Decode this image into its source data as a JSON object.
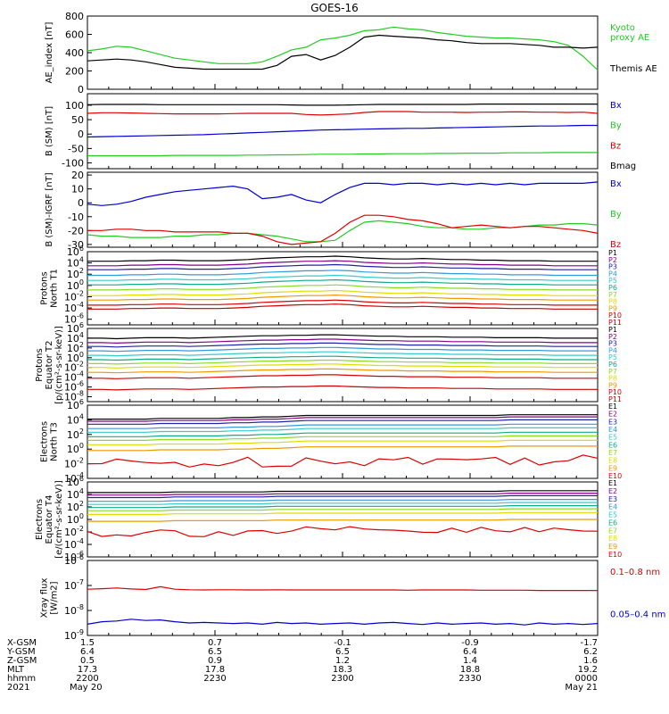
{
  "title": "GOES-16",
  "colors": {
    "black": "#000000",
    "blue": "#0000cc",
    "red": "#dd0000",
    "green": "#22cc22",
    "purple": "#880088",
    "navy": "#2222aa",
    "steel": "#3399dd",
    "cyan": "#33cccc",
    "teal": "#11aa88",
    "lime": "#88dd22",
    "yellow": "#dddd00",
    "orange": "#ee9900",
    "darkred": "#cc0000"
  },
  "time_axis": {
    "start": "2200",
    "end": "0000",
    "ticks": [
      "2200",
      "2230",
      "2300",
      "2330",
      "0000"
    ]
  },
  "footer": {
    "row_labels": [
      "X-GSM",
      "Y-GSM",
      "Z-GSM",
      "MLT",
      "hhmm",
      "2021"
    ],
    "columns": [
      {
        "values": [
          "1.5",
          "6.4",
          "0.5",
          "17.3",
          "2200",
          "May 20"
        ]
      },
      {
        "values": [
          "0.7",
          "6.5",
          "0.9",
          "17.8",
          "2230",
          ""
        ]
      },
      {
        "values": [
          "-0.1",
          "6.5",
          "1.2",
          "18.3",
          "2300",
          ""
        ]
      },
      {
        "values": [
          "-0.9",
          "6.4",
          "1.4",
          "18.8",
          "2330",
          ""
        ]
      },
      {
        "values": [
          "-1.7",
          "6.2",
          "1.6",
          "19.2",
          "0000",
          "May 21"
        ]
      }
    ]
  },
  "chart_data": [
    {
      "type": "line",
      "ylabel": "AE_index [nT]",
      "ylim": [
        0,
        800
      ],
      "yticks": [
        "0",
        "200",
        "400",
        "600",
        "800"
      ],
      "series": [
        {
          "name": "Kyoto proxy AE",
          "legend": [
            "Kyoto",
            "proxy AE"
          ],
          "color": "#22cc22",
          "y": [
            420,
            440,
            470,
            460,
            420,
            380,
            340,
            320,
            300,
            280,
            280,
            280,
            300,
            360,
            430,
            460,
            540,
            560,
            590,
            640,
            650,
            680,
            660,
            650,
            620,
            600,
            580,
            570,
            560,
            560,
            550,
            540,
            520,
            480,
            360,
            210
          ]
        },
        {
          "name": "Themis AE",
          "legend": [
            "Themis AE"
          ],
          "color": "#000000",
          "y": [
            310,
            320,
            330,
            320,
            300,
            270,
            240,
            230,
            220,
            220,
            220,
            220,
            220,
            260,
            360,
            380,
            320,
            370,
            460,
            570,
            590,
            580,
            570,
            560,
            540,
            530,
            510,
            500,
            500,
            500,
            490,
            480,
            460,
            460,
            450,
            460
          ]
        }
      ]
    },
    {
      "type": "line",
      "ylabel": "B (SM) [nT]",
      "ylim": [
        -120,
        140
      ],
      "yticks": [
        "-100",
        "-50",
        "0",
        "50",
        "100"
      ],
      "series": [
        {
          "name": "Bx",
          "legend": [
            "Bx"
          ],
          "color": "#0000cc",
          "y": [
            -10,
            -9,
            -8,
            -7,
            -6,
            -5,
            -4,
            -3,
            -2,
            0,
            2,
            4,
            6,
            8,
            10,
            12,
            14,
            15,
            16,
            17,
            18,
            19,
            20,
            20,
            21,
            22,
            23,
            24,
            25,
            26,
            27,
            28,
            28,
            29,
            30,
            30
          ]
        },
        {
          "name": "By",
          "legend": [
            "By"
          ],
          "color": "#22cc22",
          "y": [
            -75,
            -75,
            -75,
            -75,
            -75,
            -75,
            -74,
            -74,
            -74,
            -74,
            -74,
            -73,
            -73,
            -72,
            -72,
            -71,
            -70,
            -70,
            -70,
            -69,
            -69,
            -68,
            -68,
            -68,
            -67,
            -67,
            -66,
            -66,
            -66,
            -65,
            -65,
            -65,
            -64,
            -64,
            -64,
            -64
          ]
        },
        {
          "name": "Bz",
          "legend": [
            "Bz"
          ],
          "color": "#dd0000",
          "y": [
            72,
            74,
            74,
            73,
            72,
            71,
            70,
            70,
            70,
            70,
            71,
            72,
            72,
            72,
            72,
            68,
            66,
            68,
            70,
            75,
            78,
            78,
            78,
            76,
            76,
            76,
            75,
            76,
            76,
            77,
            77,
            76,
            76,
            75,
            76,
            72
          ]
        },
        {
          "name": "Bmag",
          "legend": [
            "Bmag"
          ],
          "color": "#000000",
          "y": [
            102,
            103,
            103,
            103,
            103,
            102,
            102,
            102,
            102,
            102,
            102,
            102,
            102,
            102,
            101,
            100,
            100,
            100,
            101,
            102,
            103,
            103,
            103,
            103,
            103,
            103,
            103,
            104,
            104,
            104,
            104,
            104,
            104,
            104,
            104,
            104
          ]
        }
      ]
    },
    {
      "type": "line",
      "ylabel": "B (SM)-IGRF [nT]",
      "ylim": [
        -32,
        22
      ],
      "yticks": [
        "-30",
        "-20",
        "-10",
        "0",
        "10",
        "20"
      ],
      "series": [
        {
          "name": "Bx",
          "legend": [
            "Bx"
          ],
          "color": "#0000cc",
          "y": [
            -1,
            -2,
            -1,
            1,
            4,
            6,
            8,
            9,
            10,
            11,
            12,
            10,
            3,
            4,
            6,
            2,
            0,
            6,
            11,
            14,
            14,
            13,
            14,
            14,
            13,
            14,
            13,
            14,
            13,
            14,
            13,
            14,
            14,
            14,
            14,
            15
          ]
        },
        {
          "name": "By",
          "legend": [
            "By"
          ],
          "color": "#22cc22",
          "y": [
            -23,
            -24,
            -24,
            -25,
            -25,
            -25,
            -24,
            -24,
            -23,
            -23,
            -22,
            -22,
            -23,
            -24,
            -26,
            -28,
            -28,
            -27,
            -20,
            -14,
            -13,
            -14,
            -15,
            -17,
            -18,
            -18,
            -19,
            -19,
            -18,
            -18,
            -17,
            -16,
            -16,
            -15,
            -15,
            -16
          ]
        },
        {
          "name": "Bz",
          "legend": [
            "Bz"
          ],
          "color": "#dd0000",
          "y": [
            -20,
            -20,
            -19,
            -19,
            -20,
            -20,
            -21,
            -21,
            -21,
            -21,
            -22,
            -22,
            -24,
            -28,
            -30,
            -29,
            -28,
            -22,
            -14,
            -9,
            -9,
            -10,
            -12,
            -13,
            -15,
            -18,
            -17,
            -16,
            -17,
            -18,
            -17,
            -17,
            -18,
            -19,
            -20,
            -22
          ]
        }
      ]
    },
    {
      "type": "line",
      "ylabel": [
        "Protons",
        "North T1"
      ],
      "log": true,
      "ylim": [
        -7,
        6
      ],
      "yticks": [
        "10^-6",
        "10^-4",
        "10^-2",
        "10^0",
        "10^2",
        "10^4",
        "10^6"
      ],
      "series": [
        {
          "name": "P1",
          "color": "#000000",
          "y": 4.3
        },
        {
          "name": "P2",
          "color": "#880088",
          "y": 3.5
        },
        {
          "name": "P3",
          "color": "#2222aa",
          "y": 2.8
        },
        {
          "name": "P4",
          "color": "#3399dd",
          "y": 1.8
        },
        {
          "name": "P5",
          "color": "#33cccc",
          "y": 0.9
        },
        {
          "name": "P6",
          "color": "#11aa88",
          "y": 0.1
        },
        {
          "name": "P7",
          "color": "#88dd22",
          "y": -0.8
        },
        {
          "name": "P8",
          "color": "#dddd00",
          "y": -1.8
        },
        {
          "name": "P9",
          "color": "#ee9900",
          "y": -2.6
        },
        {
          "name": "P10",
          "color": "#dd0000",
          "y": -3.5
        },
        {
          "name": "P11",
          "color": "#cc0000",
          "y": -4.2
        }
      ],
      "series_shape": [
        0,
        0,
        0,
        0.1,
        0.1,
        0.2,
        0.2,
        0.1,
        0.1,
        0.1,
        0.2,
        0.3,
        0.5,
        0.6,
        0.7,
        0.8,
        0.8,
        0.9,
        0.8,
        0.6,
        0.5,
        0.4,
        0.4,
        0.5,
        0.4,
        0.3,
        0.3,
        0.2,
        0.2,
        0.1,
        0.1,
        0.1,
        0,
        0,
        0,
        0
      ]
    },
    {
      "type": "line",
      "ylabel": [
        "Protons",
        "Equator T2",
        "[p/(cm²-s-sr-keV)]"
      ],
      "log": true,
      "ylim": [
        -9,
        6
      ],
      "yticks": [
        "10^-8",
        "10^-6",
        "10^-4",
        "10^-2",
        "10^0",
        "10^2",
        "10^4",
        "10^6"
      ],
      "series": [
        {
          "name": "P1",
          "color": "#000000",
          "y": 4.0
        },
        {
          "name": "P2",
          "color": "#880088",
          "y": 3.1
        },
        {
          "name": "P3",
          "color": "#2222aa",
          "y": 2.3
        },
        {
          "name": "P4",
          "color": "#3399dd",
          "y": 1.4
        },
        {
          "name": "P5",
          "color": "#33cccc",
          "y": 0.5
        },
        {
          "name": "P6",
          "color": "#11aa88",
          "y": -0.4
        },
        {
          "name": "P7",
          "color": "#88dd22",
          "y": -1.2
        },
        {
          "name": "P8",
          "color": "#dddd00",
          "y": -2.0
        },
        {
          "name": "P9",
          "color": "#ee9900",
          "y": -3.0
        },
        {
          "name": "P10",
          "color": "#dd0000",
          "y": -4.2
        },
        {
          "name": "P11",
          "color": "#cc0000",
          "y": -6.5
        }
      ],
      "series_shape": [
        0,
        0,
        -0.1,
        0,
        0.1,
        0.1,
        0.1,
        0,
        0.1,
        0.2,
        0.3,
        0.4,
        0.5,
        0.5,
        0.6,
        0.6,
        0.7,
        0.7,
        0.6,
        0.5,
        0.4,
        0.4,
        0.3,
        0.3,
        0.3,
        0.2,
        0.2,
        0.2,
        0.1,
        0.1,
        0.1,
        0.1,
        0,
        0,
        0,
        0
      ]
    },
    {
      "type": "line",
      "ylabel": [
        "Electrons",
        "North T3"
      ],
      "log": true,
      "ylim": [
        -4,
        6
      ],
      "yticks": [
        "10^-4",
        "10^-2",
        "10^0",
        "10^2",
        "10^4",
        "10^6"
      ],
      "series": [
        {
          "name": "E1",
          "color": "#000000",
          "y": 4.1
        },
        {
          "name": "E2",
          "color": "#880088",
          "y": 3.8
        },
        {
          "name": "E3",
          "color": "#2222aa",
          "y": 3.4
        },
        {
          "name": "E4",
          "color": "#3399dd",
          "y": 2.8
        },
        {
          "name": "E5",
          "color": "#33cccc",
          "y": 2.3
        },
        {
          "name": "E6",
          "color": "#11aa88",
          "y": 1.7
        },
        {
          "name": "E7",
          "color": "#88dd22",
          "y": 1.2
        },
        {
          "name": "E8",
          "color": "#dddd00",
          "y": 0.6
        },
        {
          "name": "E9",
          "color": "#ee9900",
          "y": -0.2
        },
        {
          "name": "E10",
          "color": "#dd0000",
          "y": -2.0,
          "noisy": true
        }
      ],
      "series_shape": [
        0,
        0,
        0,
        0,
        0,
        0.1,
        0.1,
        0.1,
        0.1,
        0.1,
        0.2,
        0.2,
        0.3,
        0.3,
        0.4,
        0.5,
        0.5,
        0.5,
        0.5,
        0.5,
        0.5,
        0.5,
        0.5,
        0.5,
        0.5,
        0.5,
        0.5,
        0.5,
        0.5,
        0.6,
        0.6,
        0.6,
        0.6,
        0.6,
        0.6,
        0.6
      ]
    },
    {
      "type": "line",
      "ylabel": [
        "Electrons",
        "Equator T4",
        "[e/(cm²-s-sr-keV)]"
      ],
      "log": true,
      "ylim": [
        -6,
        6
      ],
      "yticks": [
        "10^-6",
        "10^-4",
        "10^-2",
        "10^0",
        "10^2",
        "10^4",
        "10^6"
      ],
      "series": [
        {
          "name": "E1",
          "color": "#000000",
          "y": 4.3
        },
        {
          "name": "E2",
          "color": "#880088",
          "y": 3.9
        },
        {
          "name": "E3",
          "color": "#2222aa",
          "y": 3.5
        },
        {
          "name": "E4",
          "color": "#3399dd",
          "y": 2.9
        },
        {
          "name": "E5",
          "color": "#33cccc",
          "y": 2.4
        },
        {
          "name": "E6",
          "color": "#11aa88",
          "y": 1.9
        },
        {
          "name": "E7",
          "color": "#88dd22",
          "y": 1.4
        },
        {
          "name": "E8",
          "color": "#dddd00",
          "y": 0.8
        },
        {
          "name": "E9",
          "color": "#ee9900",
          "y": -0.3
        },
        {
          "name": "E10",
          "color": "#dd0000",
          "y": -2.1,
          "noisy": true
        }
      ],
      "series_shape": [
        0,
        0,
        0,
        0,
        0,
        0,
        0.1,
        0.1,
        0.1,
        0.1,
        0.1,
        0.1,
        0.1,
        0.2,
        0.2,
        0.2,
        0.2,
        0.2,
        0.2,
        0.2,
        0.2,
        0.2,
        0.2,
        0.2,
        0.2,
        0.2,
        0.2,
        0.2,
        0.2,
        0.3,
        0.3,
        0.3,
        0.3,
        0.3,
        0.3,
        0.3
      ]
    },
    {
      "type": "line",
      "ylabel": [
        "Xray flux",
        "[W/m2]"
      ],
      "log": true,
      "ylim": [
        -9,
        -6
      ],
      "yticks": [
        "10^-9",
        "10^-8",
        "10^-7",
        "10^-6"
      ],
      "series": [
        {
          "name": "0.1-0.8 nm",
          "legend": [
            "0.1–0.8 nm"
          ],
          "color": "#dd0000",
          "y": [
            -7.15,
            -7.13,
            -7.1,
            -7.14,
            -7.16,
            -7.05,
            -7.15,
            -7.17,
            -7.18,
            -7.17,
            -7.17,
            -7.18,
            -7.18,
            -7.17,
            -7.18,
            -7.18,
            -7.18,
            -7.18,
            -7.18,
            -7.18,
            -7.18,
            -7.18,
            -7.19,
            -7.18,
            -7.18,
            -7.18,
            -7.18,
            -7.19,
            -7.19,
            -7.19,
            -7.19,
            -7.2,
            -7.2,
            -7.2,
            -7.2,
            -7.2
          ]
        },
        {
          "name": "0.05-0.4 nm",
          "legend": [
            "0.05–0.4 nm"
          ],
          "color": "#0000cc",
          "y": [
            -8.55,
            -8.45,
            -8.42,
            -8.35,
            -8.4,
            -8.38,
            -8.45,
            -8.5,
            -8.48,
            -8.5,
            -8.52,
            -8.5,
            -8.55,
            -8.48,
            -8.52,
            -8.5,
            -8.55,
            -8.52,
            -8.5,
            -8.55,
            -8.5,
            -8.48,
            -8.52,
            -8.56,
            -8.5,
            -8.55,
            -8.52,
            -8.5,
            -8.55,
            -8.52,
            -8.58,
            -8.5,
            -8.55,
            -8.52,
            -8.56,
            -8.52
          ]
        }
      ]
    }
  ]
}
